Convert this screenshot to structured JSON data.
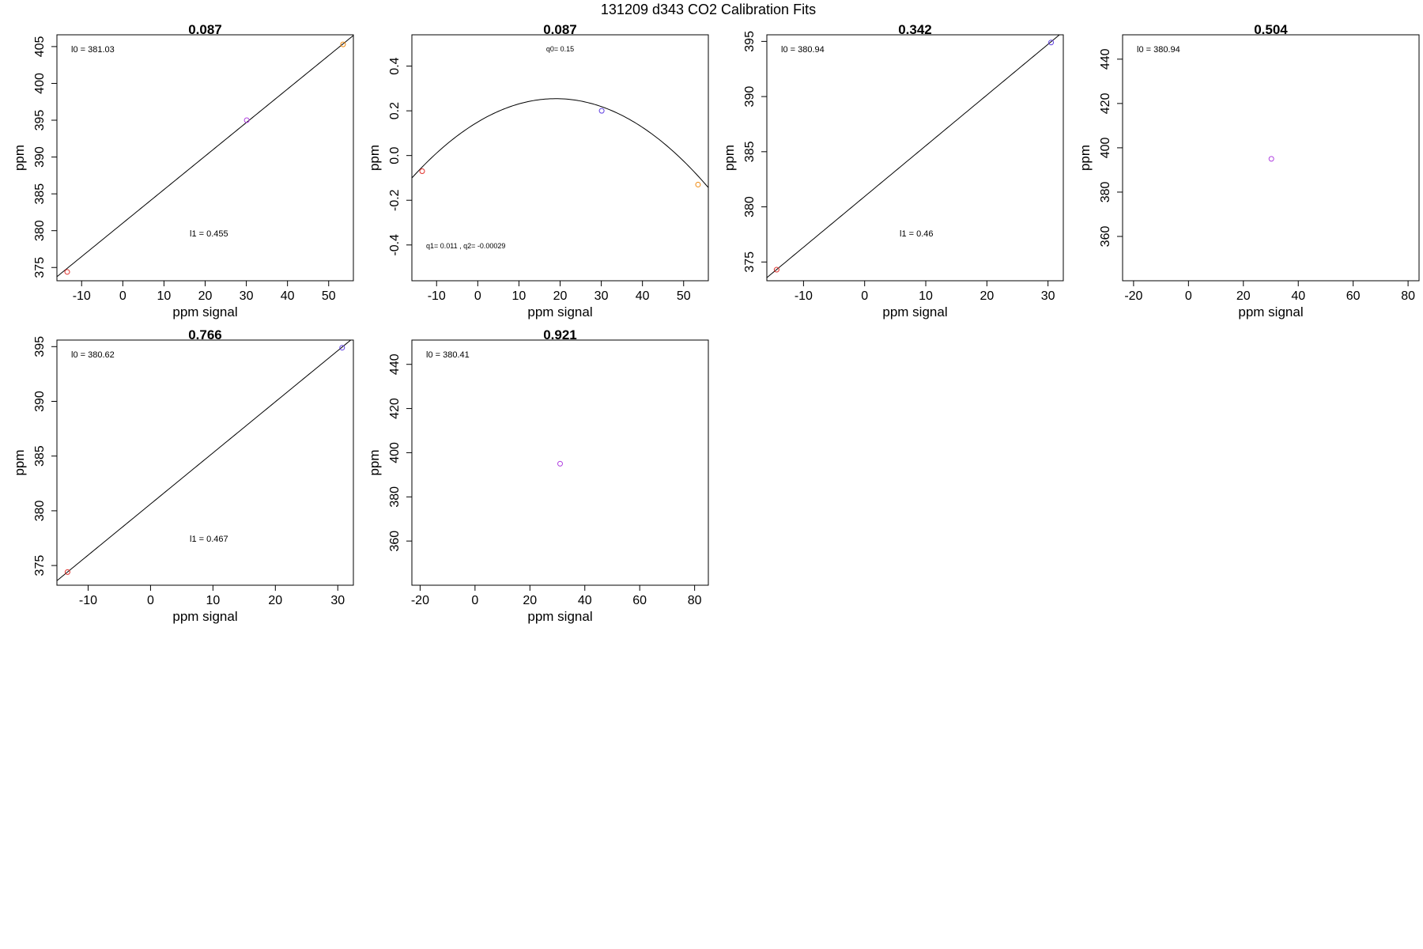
{
  "figure_title": "131209   d343   CO2 Calibration Fits",
  "chart_data": [
    {
      "id": "p1",
      "type": "scatter",
      "title": "0.087",
      "xlabel": "ppm signal",
      "ylabel": "ppm",
      "xlim": [
        -16,
        56
      ],
      "ylim": [
        373.2,
        406.6
      ],
      "xticks": [
        -10,
        0,
        10,
        20,
        30,
        40,
        50
      ],
      "xticklabels": [
        "-10",
        "0",
        "10",
        "20",
        "30",
        "40",
        "50"
      ],
      "yticks": [
        375,
        380,
        385,
        390,
        395,
        400,
        405
      ],
      "yticklabels": [
        "375",
        "380",
        "385",
        "390",
        "395",
        "400",
        "405"
      ],
      "fit": {
        "kind": "linear",
        "intercept": 381.03,
        "slope": 0.455
      },
      "points": [
        {
          "x": -13.5,
          "y": 374.4,
          "color": "#e0302a"
        },
        {
          "x": 30.1,
          "y": 395.0,
          "color": "#b040e0"
        },
        {
          "x": 53.5,
          "y": 405.3,
          "color": "#f08a10"
        }
      ],
      "annotations": [
        {
          "text": "l0 =  381.03",
          "pos": "top-left"
        },
        {
          "text": "l1 =  0.455",
          "pos": "lower-middle"
        }
      ]
    },
    {
      "id": "p2",
      "type": "scatter",
      "title": "0.087",
      "xlabel": "ppm signal",
      "ylabel": "ppm",
      "xlim": [
        -16,
        56
      ],
      "ylim": [
        -0.56,
        0.54
      ],
      "xticks": [
        -10,
        0,
        10,
        20,
        30,
        40,
        50
      ],
      "xticklabels": [
        "-10",
        "0",
        "10",
        "20",
        "30",
        "40",
        "50"
      ],
      "yticks": [
        -0.4,
        -0.2,
        0.0,
        0.2,
        0.4
      ],
      "yticklabels": [
        "-0.4",
        "-0.2",
        "0.0",
        "0.2",
        "0.4"
      ],
      "fit": {
        "kind": "quadratic",
        "q0": 0.15,
        "q1": 0.011,
        "q2": -0.00029
      },
      "points": [
        {
          "x": -13.5,
          "y": -0.07,
          "color": "#e0302a"
        },
        {
          "x": 30.1,
          "y": 0.2,
          "color": "#6040e0"
        },
        {
          "x": 53.5,
          "y": -0.13,
          "color": "#f08a10"
        }
      ],
      "annotations": [
        {
          "text": "q0= 0.15",
          "pos": "top-center",
          "size": "small"
        },
        {
          "text": "q1= 0.011 , q2= -0.00029",
          "pos": "bottom-left",
          "size": "small"
        }
      ]
    },
    {
      "id": "p3",
      "type": "scatter",
      "title": "0.342",
      "xlabel": "ppm signal",
      "ylabel": "ppm",
      "xlim": [
        -16,
        32.5
      ],
      "ylim": [
        373.3,
        395.6
      ],
      "xticks": [
        -10,
        0,
        10,
        20,
        30
      ],
      "xticklabels": [
        "-10",
        "0",
        "10",
        "20",
        "30"
      ],
      "yticks": [
        375,
        380,
        385,
        390,
        395
      ],
      "yticklabels": [
        "375",
        "380",
        "385",
        "390",
        "395"
      ],
      "fit": {
        "kind": "linear",
        "intercept": 380.94,
        "slope": 0.46
      },
      "points": [
        {
          "x": -14.4,
          "y": 374.3,
          "color": "#e0302a"
        },
        {
          "x": 30.5,
          "y": 394.9,
          "color": "#6040e0"
        }
      ],
      "annotations": [
        {
          "text": "l0 =  380.94",
          "pos": "top-left"
        },
        {
          "text": "l1 =  0.46",
          "pos": "lower-middle"
        }
      ]
    },
    {
      "id": "p4",
      "type": "scatter",
      "title": "0.504",
      "xlabel": "ppm signal",
      "ylabel": "ppm",
      "xlim": [
        -24,
        84
      ],
      "ylim": [
        340,
        451
      ],
      "xticks": [
        -20,
        0,
        20,
        40,
        60,
        80
      ],
      "xticklabels": [
        "-20",
        "0",
        "20",
        "40",
        "60",
        "80"
      ],
      "yticks": [
        360,
        380,
        400,
        420,
        440
      ],
      "yticklabels": [
        "360",
        "380",
        "400",
        "420",
        "440"
      ],
      "points": [
        {
          "x": 30.2,
          "y": 395.0,
          "color": "#b040e0"
        }
      ],
      "annotations": [
        {
          "text": "l0 =  380.94",
          "pos": "top-left"
        }
      ]
    },
    {
      "id": "p5",
      "type": "scatter",
      "title": "0.766",
      "xlabel": "ppm signal",
      "ylabel": "ppm",
      "xlim": [
        -15,
        32.5
      ],
      "ylim": [
        373.2,
        395.6
      ],
      "xticks": [
        -10,
        0,
        10,
        20,
        30
      ],
      "xticklabels": [
        "-10",
        "0",
        "10",
        "20",
        "30"
      ],
      "yticks": [
        375,
        380,
        385,
        390,
        395
      ],
      "yticklabels": [
        "375",
        "380",
        "385",
        "390",
        "395"
      ],
      "fit": {
        "kind": "linear",
        "intercept": 380.62,
        "slope": 0.467
      },
      "points": [
        {
          "x": -13.3,
          "y": 374.4,
          "color": "#e0302a"
        },
        {
          "x": 30.7,
          "y": 394.9,
          "color": "#6040e0"
        }
      ],
      "annotations": [
        {
          "text": "l0 =  380.62",
          "pos": "top-left"
        },
        {
          "text": "l1 =  0.467",
          "pos": "lower-middle"
        }
      ]
    },
    {
      "id": "p6",
      "type": "scatter",
      "title": "0.921",
      "xlabel": "ppm signal",
      "ylabel": "ppm",
      "xlim": [
        -23,
        85
      ],
      "ylim": [
        340,
        451
      ],
      "xticks": [
        -20,
        0,
        20,
        40,
        60,
        80
      ],
      "xticklabels": [
        "-20",
        "0",
        "20",
        "40",
        "60",
        "80"
      ],
      "yticks": [
        360,
        380,
        400,
        420,
        440
      ],
      "yticklabels": [
        "360",
        "380",
        "400",
        "420",
        "440"
      ],
      "points": [
        {
          "x": 31.0,
          "y": 395.0,
          "color": "#b040e0"
        }
      ],
      "annotations": [
        {
          "text": "l0 =  380.41",
          "pos": "top-left"
        }
      ]
    }
  ]
}
